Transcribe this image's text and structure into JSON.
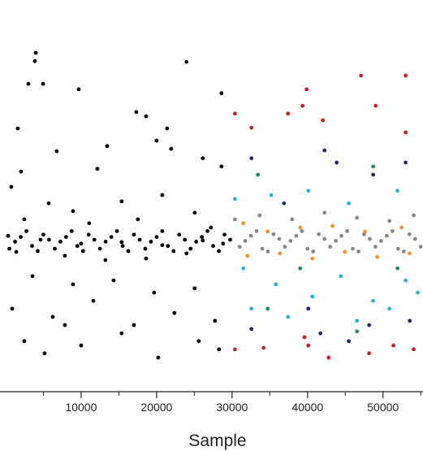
{
  "chart_data": {
    "type": "scatter",
    "x_label": "Sample",
    "xlim": [
      -750,
      55300
    ],
    "ylim": [
      0,
      100
    ],
    "xticks": [
      10000,
      20000,
      30000,
      40000,
      50000
    ],
    "xminor_ticks": [
      5000,
      15000,
      25000,
      35000,
      45000,
      55000
    ],
    "series": [
      {
        "color": "#000000",
        "x": [
          3980,
          3870,
          3010,
          4950,
          9680,
          1610,
          6770,
          17310,
          18600,
          21390,
          20000,
          21930,
          23970,
          28600,
          13440,
          2040,
          750,
          12150,
          26120,
          28600,
          15370,
          5700,
          20750,
          8920,
          25050,
          2470,
          11070,
          17520,
          27200,
          320,
          4620,
          10000,
          15370,
          20750,
          26120,
          28810,
          1400,
          7850,
          13220,
          18600,
          23970,
          3550,
          8920,
          14300,
          19670,
          25050,
          860,
          6240,
          11610,
          16990,
          22360,
          27740,
          2470,
          5160,
          10000,
          15370,
          20210,
          25590,
          28270,
          7850,
          500,
          2000,
          3500,
          5000,
          6500,
          8000,
          9500,
          11000,
          12500,
          14000,
          15500,
          17000,
          18500,
          20000,
          21500,
          23000,
          24500,
          26000,
          27500,
          29000,
          1250,
          2750,
          4250,
          5750,
          7250,
          8750,
          10250,
          11750,
          13250,
          14750,
          16250,
          17750,
          19250,
          20750,
          22250,
          23750,
          25250,
          26750,
          28250,
          29750
        ],
        "values": [
          86.5,
          84.4,
          78.6,
          78.6,
          77.2,
          67.2,
          61.4,
          71.4,
          70.3,
          67.2,
          64.1,
          62.0,
          84.2,
          76.2,
          62.7,
          56.2,
          52.3,
          56.9,
          59.6,
          57.5,
          48.6,
          48.1,
          50.2,
          46.1,
          45.7,
          44.0,
          43.0,
          44.0,
          41.9,
          39.8,
          38.8,
          37.8,
          38.2,
          37.4,
          38.6,
          37.8,
          35.7,
          34.7,
          33.6,
          34.0,
          35.3,
          29.5,
          27.4,
          28.4,
          25.3,
          26.4,
          21.2,
          19.1,
          23.2,
          17.0,
          20.1,
          18.1,
          12.9,
          9.8,
          11.8,
          14.9,
          8.7,
          12.9,
          10.8,
          17.0,
          36.5,
          39.5,
          37.2,
          40.1,
          36.5,
          39.5,
          37.2,
          40.1,
          36.5,
          39.5,
          37.2,
          40.1,
          36.5,
          39.5,
          37.2,
          40.1,
          36.5,
          39.5,
          37.2,
          40.1,
          38.3,
          41.0,
          35.9,
          38.8,
          38.3,
          41.0,
          35.9,
          38.8,
          38.3,
          41.0,
          35.9,
          38.8,
          38.3,
          41.0,
          35.9,
          38.8,
          38.3,
          41.0,
          35.9,
          38.8
        ]
      },
      {
        "color": "#888888",
        "x": [
          30380,
          33650,
          37950,
          42250,
          46550,
          50850,
          54070,
          31000,
          32500,
          34000,
          35500,
          37000,
          38500,
          40000,
          41500,
          43000,
          44500,
          46000,
          47500,
          49000,
          50500,
          52000,
          53500,
          55000,
          31750,
          33250,
          34750,
          36250,
          37750,
          39250,
          40750,
          42250,
          43750,
          45250,
          46750,
          48250,
          49750,
          51250,
          52750,
          54250
        ],
        "values": [
          44.0,
          45.0,
          44.0,
          45.7,
          44.4,
          43.6,
          45.0,
          37.0,
          39.8,
          36.5,
          40.2,
          37.0,
          39.8,
          36.5,
          40.2,
          37.0,
          39.8,
          36.5,
          40.2,
          37.0,
          39.8,
          36.5,
          40.2,
          37.0,
          38.5,
          41.0,
          35.8,
          39.0,
          38.5,
          41.0,
          35.8,
          39.0,
          38.5,
          41.0,
          35.8,
          39.0,
          38.5,
          41.0,
          35.8,
          39.0
        ]
      },
      {
        "color": "#f0922f",
        "x": [
          31500,
          34720,
          39020,
          43320,
          47620,
          52460,
          32040,
          36340,
          40640,
          44940,
          49240,
          53540
        ],
        "values": [
          43.0,
          40.9,
          41.9,
          42.3,
          40.9,
          41.9,
          34.7,
          35.3,
          34.0,
          35.7,
          34.4,
          35.3
        ]
      },
      {
        "color": "#23b5d3",
        "x": [
          30380,
          35200,
          40100,
          45470,
          51920,
          31500,
          35800,
          40640,
          44400,
          48700,
          53000,
          32570,
          37410,
          46550,
          50850,
          54610
        ],
        "values": [
          49.2,
          50.2,
          51.3,
          48.1,
          51.3,
          31.5,
          27.4,
          24.3,
          29.5,
          23.2,
          28.4,
          21.2,
          19.1,
          18.1,
          21.2,
          25.3
        ]
      },
      {
        "color": "#1a2a6e",
        "x": [
          32570,
          42250,
          43860,
          48700,
          53000,
          36880,
          32570,
          40100,
          41710,
          48160,
          53540,
          45470
        ],
        "values": [
          59.6,
          61.6,
          58.5,
          55.4,
          58.5,
          48.1,
          16.0,
          21.2,
          14.9,
          17.0,
          18.1,
          12.9
        ]
      },
      {
        "color": "#1f8f4f",
        "x": [
          33430,
          48700,
          34720,
          46550,
          51920,
          39020
        ],
        "values": [
          55.4,
          57.5,
          21.2,
          15.4,
          31.5,
          31.5
        ]
      },
      {
        "color": "#c8202a",
        "x": [
          30380,
          32570,
          39880,
          39340,
          47090,
          49030,
          53000,
          53000,
          42030,
          37410,
          30380,
          34180,
          40100,
          42790,
          48160,
          51380,
          54070,
          39590
        ],
        "values": [
          71.0,
          67.4,
          77.2,
          73.0,
          80.7,
          73.0,
          80.7,
          66.2,
          69.3,
          71.0,
          10.8,
          11.2,
          11.8,
          8.7,
          9.8,
          11.8,
          10.8,
          13.9
        ]
      }
    ]
  }
}
